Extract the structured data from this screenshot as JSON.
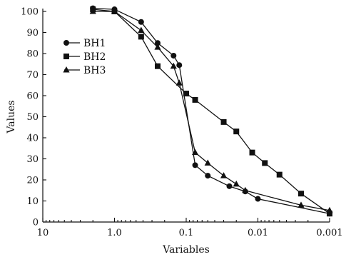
{
  "chart_data": {
    "type": "line",
    "xlabel": "Variables",
    "ylabel": "Values",
    "xscale": "log",
    "x_reversed": true,
    "xlim": [
      10,
      0.001
    ],
    "ylim": [
      0,
      100
    ],
    "x_ticks": [
      10,
      1,
      0.1,
      0.01,
      0.001
    ],
    "x_tick_labels": [
      "10",
      "1.0",
      "0.1",
      "0.01",
      "0.001"
    ],
    "y_ticks": [
      0,
      10,
      20,
      30,
      40,
      50,
      60,
      70,
      80,
      90,
      100
    ],
    "y_tick_labels": [
      "0",
      "10",
      "20",
      "30",
      "40",
      "50",
      "60",
      "70",
      "80",
      "90",
      "100"
    ],
    "legend_position": "top-left",
    "series": [
      {
        "name": "BH1",
        "marker": "circle",
        "x": [
          2,
          1,
          0.425,
          0.25,
          0.15,
          0.125,
          0.075,
          0.05,
          0.025,
          0.015,
          0.01,
          0.001
        ],
        "y": [
          101.5,
          101,
          95,
          85,
          79,
          74.5,
          27,
          22,
          17,
          14.5,
          11,
          4
        ]
      },
      {
        "name": "BH2",
        "marker": "square",
        "x": [
          2,
          1,
          0.425,
          0.25,
          0.1,
          0.075,
          0.03,
          0.02,
          0.012,
          0.008,
          0.005,
          0.0025,
          0.001
        ],
        "y": [
          101,
          100,
          88,
          74,
          61,
          58,
          47.5,
          43,
          33,
          28,
          22.5,
          13.5,
          4
        ]
      },
      {
        "name": "BH3",
        "marker": "triangle",
        "x": [
          2,
          1,
          0.425,
          0.25,
          0.15,
          0.125,
          0.075,
          0.05,
          0.03,
          0.02,
          0.015,
          0.0025,
          0.001
        ],
        "y": [
          100,
          100,
          91,
          83,
          74,
          66,
          33,
          28,
          22,
          18,
          15,
          8,
          5.5
        ]
      }
    ]
  }
}
